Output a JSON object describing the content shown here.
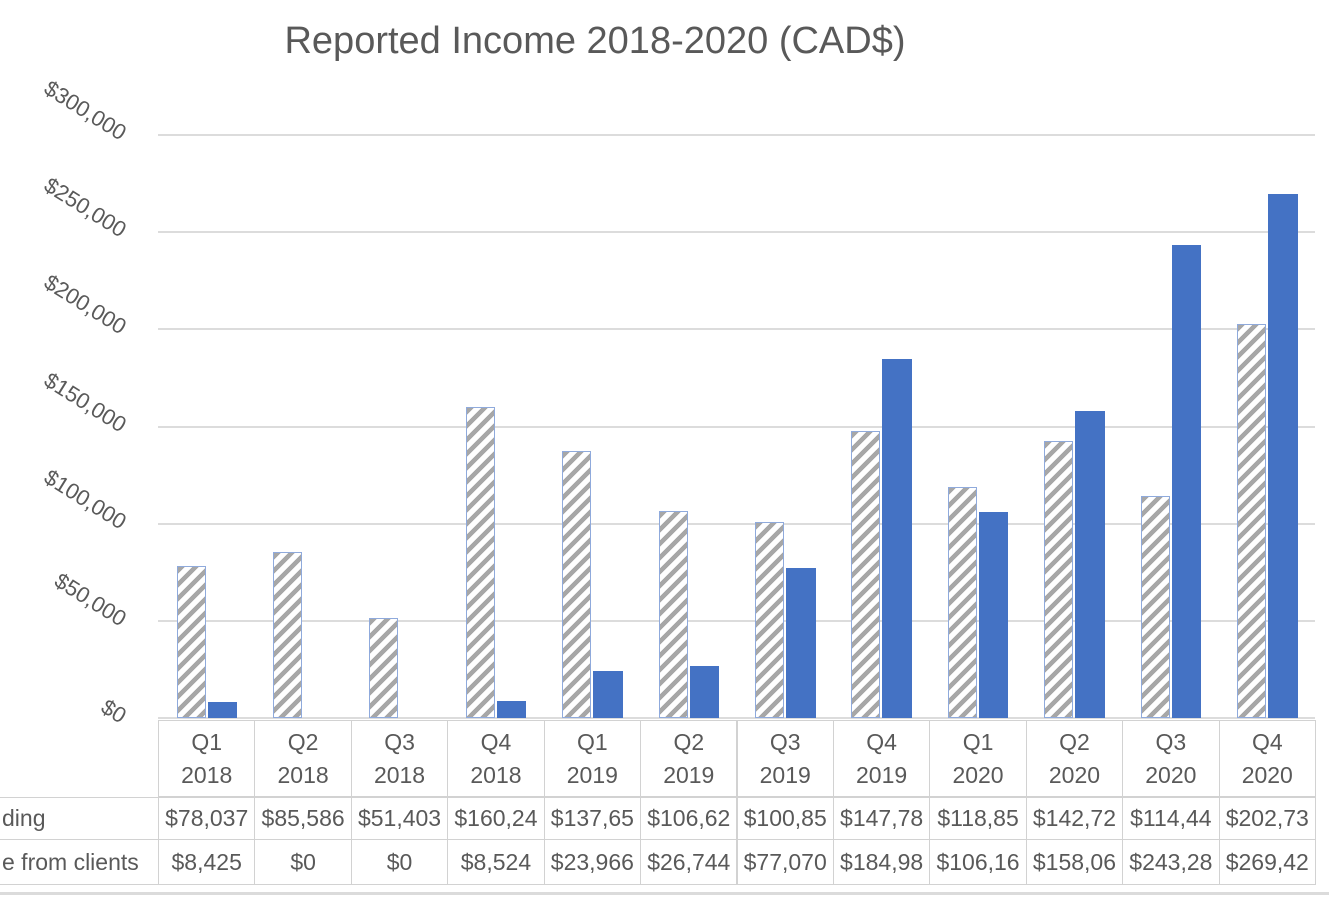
{
  "title": "Reported Income 2018-2020 (CAD$)",
  "colors": {
    "text": "#595959",
    "gridline": "#DCDCDC",
    "table_border": "#D2D2D2",
    "solid_bar_fill": "#4472C4",
    "hatched_bar_stripe": "#A7A7A7",
    "hatched_bar_border": "#8FAADC",
    "background": "#FFFFFF"
  },
  "chart_data": {
    "type": "bar",
    "title": "Reported Income 2018-2020 (CAD$)",
    "categories": [
      "Q1 2018",
      "Q2 2018",
      "Q3 2018",
      "Q4 2018",
      "Q1 2019",
      "Q2 2019",
      "Q3 2019",
      "Q4 2019",
      "Q1 2020",
      "Q2 2020",
      "Q3 2020",
      "Q4 2020"
    ],
    "series": [
      {
        "name": "ding",
        "fill_style": "gray-diagonal-hatch",
        "values": [
          78037,
          85586,
          51403,
          160240,
          137650,
          106620,
          100850,
          147780,
          118850,
          142720,
          114440,
          202730
        ],
        "display": [
          "$78,037",
          "$85,586",
          "$51,403",
          "$160,24",
          "$137,65",
          "$106,62",
          "$100,85",
          "$147,78",
          "$118,85",
          "$142,72",
          "$114,44",
          "$202,73"
        ]
      },
      {
        "name": "e from clients",
        "fill_style": "solid-blue",
        "values": [
          8425,
          0,
          0,
          8524,
          23966,
          26744,
          77070,
          184980,
          106160,
          158060,
          243280,
          269420
        ],
        "display": [
          "$8,425",
          "$0",
          "$0",
          "$8,524",
          "$23,966",
          "$26,744",
          "$77,070",
          "$184,98",
          "$106,16",
          "$158,06",
          "$243,28",
          "$269,42"
        ]
      }
    ],
    "xlabel": "",
    "ylabel": "",
    "ylim": [
      0,
      300000
    ],
    "y_tick_values": [
      300000,
      250000,
      200000,
      150000,
      100000,
      50000,
      0
    ],
    "y_tick_labels": [
      "$300,000",
      "$250,000",
      "$200,000",
      "$150,000",
      "$100,000",
      "$50,000",
      "$0"
    ],
    "grid": "horizontal-only",
    "legend_position": "data-table-below-chart"
  },
  "table": {
    "row_labels": [
      "ding",
      "e from clients"
    ],
    "column_headers": [
      {
        "line1": "Q1",
        "line2": "2018"
      },
      {
        "line1": "Q2",
        "line2": "2018"
      },
      {
        "line1": "Q3",
        "line2": "2018"
      },
      {
        "line1": "Q4",
        "line2": "2018"
      },
      {
        "line1": "Q1",
        "line2": "2019"
      },
      {
        "line1": "Q2",
        "line2": "2019"
      },
      {
        "line1": "Q3",
        "line2": "2019"
      },
      {
        "line1": "Q4",
        "line2": "2019"
      },
      {
        "line1": "Q1",
        "line2": "2020"
      },
      {
        "line1": "Q2",
        "line2": "2020"
      },
      {
        "line1": "Q3",
        "line2": "2020"
      },
      {
        "line1": "Q4",
        "line2": "2020"
      }
    ]
  }
}
